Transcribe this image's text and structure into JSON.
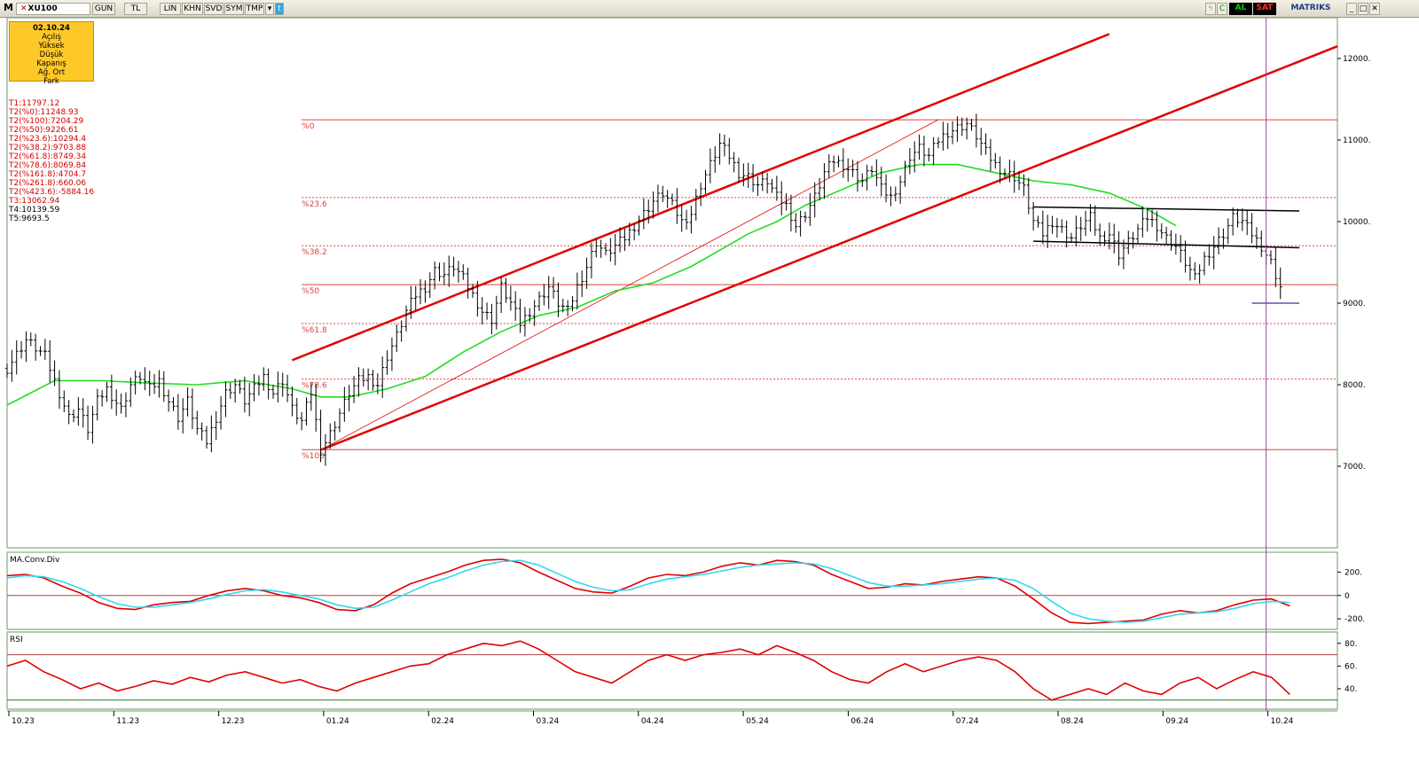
{
  "toolbar": {
    "app_letter": "M",
    "symbol": "XU100",
    "buttons": [
      "GUN",
      "TL",
      "LIN",
      "KHN",
      "SVD",
      "SYM",
      "TMP"
    ],
    "status_al": "AL",
    "status_sat": "SAT",
    "brand": "MATRIKS",
    "colors": {
      "al": "#00a000",
      "sat": "#d00000"
    }
  },
  "info_box": {
    "date": "02.10.24",
    "fields": [
      "Açılış",
      "Yüksek",
      "Düşük",
      "Kapanış",
      "Ağ. Ort",
      "Fark"
    ]
  },
  "levels": {
    "red": [
      "T1:11797.12",
      "T2(%0):11248.93",
      "T2(%100):7204.29",
      "T2(%50):9226.61",
      "T2(%23.6):10294.4",
      "T2(%38.2):9703.88",
      "T2(%61.8):8749.34",
      "T2(%78.6):8069.84",
      "T2(%161.8):4704.7",
      "T2(%261.8):660.06",
      "T2(%423.6):-5884.16",
      "T3:13062.94"
    ],
    "black": [
      "T4:10139.59",
      "T5:9693.5"
    ]
  },
  "chart_data": [
    {
      "type": "ohlc",
      "name": "XU100",
      "ylim": [
        6000,
        12500
      ],
      "y_ticks": [
        "12000.",
        "11000.",
        "10000.",
        "9000.",
        "8000.",
        "7000."
      ],
      "y_tick_values": [
        12000,
        11000,
        10000,
        9000,
        8000,
        7000
      ],
      "x_ticks": [
        "10.23",
        "11.23",
        "12.23",
        "01.24",
        "02.24",
        "03.24",
        "04.24",
        "05.24",
        "06.24",
        "07.24",
        "08.24",
        "09.24",
        "10.24"
      ],
      "fib_levels": [
        {
          "label": "%0",
          "value": 11248.93,
          "style": "solid"
        },
        {
          "label": "%23.6",
          "value": 10294.4,
          "style": "dashed"
        },
        {
          "label": "%38.2",
          "value": 9703.88,
          "style": "dashed"
        },
        {
          "label": "%50",
          "value": 9226.61,
          "style": "solid"
        },
        {
          "label": "%61.8",
          "value": 8749.34,
          "style": "dashed"
        },
        {
          "label": "%78.6",
          "value": 8069.84,
          "style": "dashed"
        },
        {
          "label": "%100",
          "value": 7204.29,
          "style": "solid"
        }
      ],
      "price_path": [
        [
          0,
          8200
        ],
        [
          4,
          8550
        ],
        [
          8,
          8350
        ],
        [
          10,
          8050
        ],
        [
          13,
          7600
        ],
        [
          15,
          7700
        ],
        [
          17,
          7450
        ],
        [
          19,
          7800
        ],
        [
          21,
          7950
        ],
        [
          24,
          7700
        ],
        [
          26,
          8000
        ],
        [
          28,
          8100
        ],
        [
          30,
          7950
        ],
        [
          32,
          8050
        ],
        [
          34,
          7800
        ],
        [
          36,
          7600
        ],
        [
          38,
          7800
        ],
        [
          40,
          7450
        ],
        [
          42,
          7300
        ],
        [
          44,
          7600
        ],
        [
          46,
          7900
        ],
        [
          48,
          8000
        ],
        [
          50,
          7800
        ],
        [
          52,
          7950
        ],
        [
          54,
          8100
        ],
        [
          56,
          7900
        ],
        [
          58,
          8050
        ],
        [
          60,
          7700
        ],
        [
          62,
          7550
        ],
        [
          64,
          7900
        ],
        [
          66,
          7200
        ],
        [
          68,
          7400
        ],
        [
          70,
          7650
        ],
        [
          72,
          7900
        ],
        [
          74,
          8050
        ],
        [
          76,
          8100
        ],
        [
          78,
          8000
        ],
        [
          80,
          8350
        ],
        [
          82,
          8600
        ],
        [
          84,
          8900
        ],
        [
          86,
          9100
        ],
        [
          88,
          9200
        ],
        [
          90,
          9400
        ],
        [
          92,
          9350
        ],
        [
          94,
          9450
        ],
        [
          96,
          9300
        ],
        [
          98,
          9100
        ],
        [
          100,
          8900
        ],
        [
          102,
          8800
        ],
        [
          104,
          9200
        ],
        [
          106,
          9000
        ],
        [
          108,
          8750
        ],
        [
          110,
          8900
        ],
        [
          112,
          9050
        ],
        [
          114,
          9200
        ],
        [
          116,
          9000
        ],
        [
          118,
          8900
        ],
        [
          120,
          9200
        ],
        [
          122,
          9450
        ],
        [
          124,
          9750
        ],
        [
          126,
          9600
        ],
        [
          128,
          9700
        ],
        [
          130,
          9800
        ],
        [
          132,
          9950
        ],
        [
          134,
          10100
        ],
        [
          136,
          10250
        ],
        [
          138,
          10350
        ],
        [
          140,
          10200
        ],
        [
          142,
          10000
        ],
        [
          144,
          10100
        ],
        [
          146,
          10450
        ],
        [
          148,
          10700
        ],
        [
          150,
          10950
        ],
        [
          152,
          10800
        ],
        [
          154,
          10600
        ],
        [
          156,
          10550
        ],
        [
          158,
          10450
        ],
        [
          160,
          10500
        ],
        [
          162,
          10300
        ],
        [
          164,
          10200
        ],
        [
          166,
          9950
        ],
        [
          168,
          10100
        ],
        [
          170,
          10300
        ],
        [
          172,
          10600
        ],
        [
          174,
          10750
        ],
        [
          176,
          10700
        ],
        [
          178,
          10600
        ],
        [
          180,
          10500
        ],
        [
          182,
          10650
        ],
        [
          184,
          10400
        ],
        [
          186,
          10300
        ],
        [
          188,
          10500
        ],
        [
          190,
          10800
        ],
        [
          192,
          10900
        ],
        [
          194,
          10800
        ],
        [
          196,
          11000
        ],
        [
          198,
          11100
        ],
        [
          200,
          11150
        ],
        [
          202,
          11200
        ],
        [
          204,
          11050
        ],
        [
          206,
          10850
        ],
        [
          208,
          10700
        ],
        [
          210,
          10600
        ],
        [
          212,
          10550
        ],
        [
          214,
          10400
        ],
        [
          216,
          10000
        ],
        [
          218,
          9850
        ],
        [
          220,
          10000
        ],
        [
          222,
          9900
        ],
        [
          224,
          9800
        ],
        [
          226,
          9950
        ],
        [
          228,
          10050
        ],
        [
          230,
          9800
        ],
        [
          232,
          9850
        ],
        [
          234,
          9600
        ],
        [
          236,
          9750
        ],
        [
          238,
          9900
        ],
        [
          240,
          10050
        ],
        [
          242,
          9950
        ],
        [
          244,
          9800
        ],
        [
          246,
          9700
        ],
        [
          248,
          9500
        ],
        [
          250,
          9300
        ],
        [
          252,
          9550
        ],
        [
          254,
          9700
        ],
        [
          256,
          9850
        ],
        [
          258,
          10050
        ],
        [
          260,
          10000
        ],
        [
          262,
          9850
        ],
        [
          264,
          9700
        ],
        [
          266,
          9500
        ],
        [
          268,
          9200
        ],
        [
          269,
          9000
        ]
      ],
      "ma_path": [
        [
          0,
          7750
        ],
        [
          10,
          8050
        ],
        [
          20,
          8050
        ],
        [
          30,
          8020
        ],
        [
          40,
          8000
        ],
        [
          50,
          8050
        ],
        [
          60,
          7950
        ],
        [
          66,
          7850
        ],
        [
          72,
          7850
        ],
        [
          80,
          7950
        ],
        [
          88,
          8100
        ],
        [
          96,
          8400
        ],
        [
          104,
          8650
        ],
        [
          112,
          8850
        ],
        [
          120,
          8950
        ],
        [
          128,
          9150
        ],
        [
          136,
          9250
        ],
        [
          144,
          9450
        ],
        [
          150,
          9650
        ],
        [
          156,
          9850
        ],
        [
          162,
          10000
        ],
        [
          168,
          10200
        ],
        [
          176,
          10400
        ],
        [
          184,
          10600
        ],
        [
          192,
          10700
        ],
        [
          200,
          10700
        ],
        [
          208,
          10600
        ],
        [
          216,
          10500
        ],
        [
          224,
          10450
        ],
        [
          232,
          10350
        ],
        [
          240,
          10150
        ],
        [
          246,
          9950
        ]
      ],
      "channel_lines": [
        {
          "from": [
            60,
            8300
          ],
          "to": [
            232,
            12300
          ],
          "color": "#e00000",
          "width": 2.5
        },
        {
          "from": [
            66,
            7200
          ],
          "to": [
            280,
            12150
          ],
          "color": "#e00000",
          "width": 2.5
        },
        {
          "from": [
            66,
            7200
          ],
          "to": [
            196,
            11250
          ],
          "color": "#e00000",
          "width": 0.8
        }
      ],
      "rectangle_lines": [
        {
          "from": [
            216,
            10180
          ],
          "to": [
            272,
            10130
          ]
        },
        {
          "from": [
            216,
            9760
          ],
          "to": [
            272,
            9680
          ]
        }
      ],
      "support_line": {
        "from": [
          262,
          9000
        ],
        "to": [
          272,
          9000
        ],
        "color": "#000080"
      },
      "cursor_x": 265
    },
    {
      "type": "line",
      "title": "MA.Conv.Div",
      "ylim": [
        -290,
        370
      ],
      "y_ticks": [
        "200.",
        "0",
        "-200."
      ],
      "y_tick_values": [
        200,
        0,
        -200
      ],
      "series": [
        {
          "values": [
            170,
            180,
            150,
            80,
            20,
            -60,
            -110,
            -120,
            -80,
            -60,
            -50,
            0,
            40,
            60,
            40,
            0,
            -20,
            -60,
            -120,
            -130,
            -80,
            20,
            100,
            150,
            200,
            260,
            300,
            310,
            280,
            200,
            130,
            60,
            30,
            20,
            80,
            150,
            180,
            170,
            200,
            250,
            280,
            260,
            300,
            290,
            260,
            180,
            120,
            60,
            70,
            100,
            90,
            120,
            140,
            160,
            150,
            80,
            -30,
            -150,
            -230,
            -240,
            -230,
            -220,
            -210,
            -160,
            -130,
            -150,
            -130,
            -80,
            -40,
            -30,
            -90
          ],
          "color": "#e00000"
        },
        {
          "values": [
            150,
            170,
            160,
            120,
            60,
            -10,
            -70,
            -100,
            -100,
            -80,
            -60,
            -30,
            10,
            40,
            50,
            30,
            0,
            -30,
            -80,
            -110,
            -100,
            -40,
            30,
            100,
            150,
            210,
            260,
            290,
            300,
            260,
            190,
            120,
            70,
            40,
            50,
            100,
            140,
            160,
            180,
            210,
            240,
            260,
            270,
            280,
            270,
            230,
            170,
            110,
            80,
            80,
            90,
            100,
            120,
            140,
            150,
            130,
            60,
            -50,
            -150,
            -200,
            -220,
            -230,
            -220,
            -190,
            -160,
            -150,
            -140,
            -110,
            -70,
            -50,
            -60
          ],
          "color": "#30d8f0"
        }
      ]
    },
    {
      "type": "line",
      "title": "RSI",
      "ylim": [
        22,
        90
      ],
      "y_ticks": [
        "80.",
        "60.",
        "40."
      ],
      "y_tick_values": [
        80,
        60,
        40
      ],
      "bands": [
        70,
        30
      ],
      "series": [
        {
          "values": [
            60,
            65,
            55,
            48,
            40,
            45,
            38,
            42,
            47,
            44,
            50,
            46,
            52,
            55,
            50,
            45,
            48,
            42,
            38,
            45,
            50,
            55,
            60,
            62,
            70,
            75,
            80,
            78,
            82,
            75,
            65,
            55,
            50,
            45,
            55,
            65,
            70,
            65,
            70,
            72,
            75,
            70,
            78,
            72,
            65,
            55,
            48,
            45,
            55,
            62,
            55,
            60,
            65,
            68,
            65,
            55,
            40,
            30,
            35,
            40,
            35,
            45,
            38,
            35,
            45,
            50,
            40,
            48,
            55,
            50,
            35
          ],
          "color": "#e00000"
        }
      ]
    }
  ]
}
